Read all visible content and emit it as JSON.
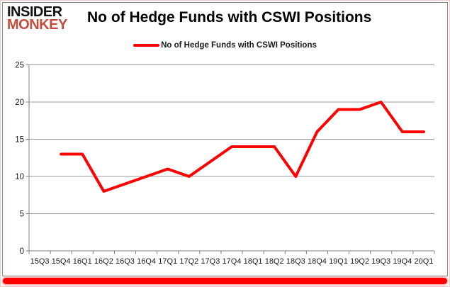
{
  "logo": {
    "line1": "INSIDER",
    "line2": "MONKEY"
  },
  "header": {
    "title": "No of Hedge Funds with CSWI Positions"
  },
  "legend": {
    "label": "No of Hedge Funds with CSWI Positions"
  },
  "colors": {
    "line": "#FF0000",
    "logo_red": "#C64B3C",
    "gridline": "#999999",
    "axis": "#808080",
    "tick_label": "#1a1a1a",
    "bottom_bar": "#FF0000"
  },
  "chart_data": {
    "type": "line",
    "title": "No of Hedge Funds with CSWI Positions",
    "categories": [
      "15Q3",
      "15Q4",
      "16Q1",
      "16Q2",
      "16Q3",
      "16Q4",
      "17Q1",
      "17Q2",
      "17Q3",
      "17Q4",
      "18Q1",
      "18Q2",
      "18Q3",
      "18Q4",
      "19Q1",
      "19Q2",
      "19Q3",
      "19Q4",
      "20Q1"
    ],
    "series": [
      {
        "name": "No of Hedge Funds with CSWI Positions",
        "color": "#FF0000",
        "values": [
          null,
          13,
          13,
          8,
          9,
          10,
          11,
          10,
          12,
          14,
          14,
          14,
          10,
          16,
          19,
          19,
          20,
          16,
          16
        ]
      }
    ],
    "xlabel": "",
    "ylabel": "",
    "ylim": [
      0,
      25
    ],
    "ytick_interval": 5,
    "grid": "horizontal",
    "legend_position": "top-center"
  }
}
